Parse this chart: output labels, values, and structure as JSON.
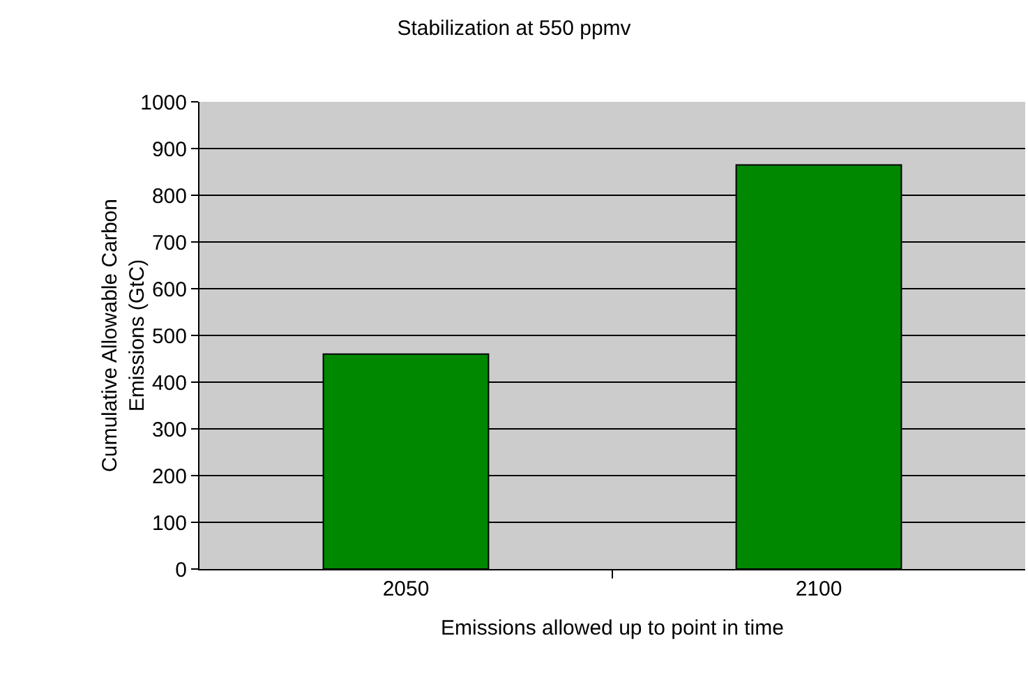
{
  "chart_data": {
    "type": "bar",
    "title": "Stabilization at 550 ppmv",
    "xlabel": "Emissions allowed up to point in time",
    "ylabel": "Cumulative Allowable Carbon Emissions (GtC)",
    "categories": [
      "2050",
      "2100"
    ],
    "values": [
      460,
      865
    ],
    "color": "#008800",
    "ylim": [
      0,
      1000
    ],
    "yticks": [
      0,
      100,
      200,
      300,
      400,
      500,
      600,
      700,
      800,
      900,
      1000
    ],
    "grid": "y",
    "legend": false
  }
}
